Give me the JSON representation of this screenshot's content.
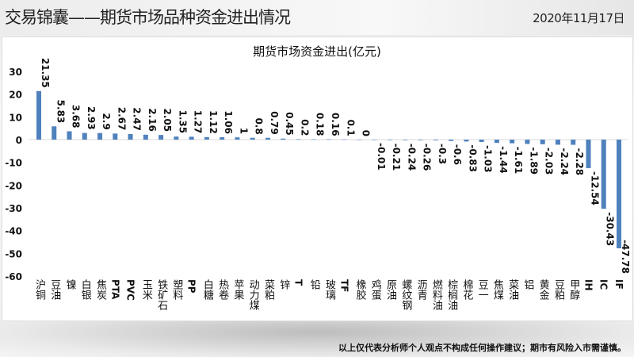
{
  "header": {
    "title": "交易锦囊——期货市场品种资金进出情况",
    "date": "2020年11月17日"
  },
  "footer": {
    "disclaimer": "以上仅代表分析师个人观点不构成任何操作建议；期市有风险入市需谨慎。"
  },
  "chart_data": {
    "type": "bar",
    "title": "期货市场资金进出(亿元)",
    "xlabel": "",
    "ylabel": "",
    "ylim": [
      -60,
      30
    ],
    "yticks": [
      30,
      20,
      10,
      0,
      -10,
      -20,
      -30,
      -40,
      -50,
      -60
    ],
    "grid": false,
    "bar_color": "#4f81bd",
    "data_labels": true,
    "categories": [
      "沪铜",
      "豆油",
      "镍",
      "白银",
      "焦炭",
      "PTA",
      "PVC",
      "玉米",
      "铁矿石",
      "塑料",
      "PP",
      "白糖",
      "热卷",
      "苹果",
      "动力煤",
      "菜粕",
      "锌",
      "T",
      "铅",
      "玻璃",
      "TF",
      "橡胶",
      "鸡蛋",
      "原油",
      "螺纹钢",
      "沥青",
      "燃料油",
      "棕榈油",
      "棉花",
      "豆一",
      "焦煤",
      "菜油",
      "铝",
      "黄金",
      "豆粕",
      "甲醇",
      "IH",
      "IC",
      "IF"
    ],
    "values": [
      21.35,
      5.83,
      3.68,
      2.93,
      2.9,
      2.67,
      2.47,
      2.16,
      2.05,
      1.35,
      1.27,
      1.12,
      1.06,
      1,
      0.8,
      0.79,
      0.45,
      0.2,
      0.18,
      0.16,
      0.1,
      0,
      -0.01,
      -0.21,
      -0.24,
      -0.26,
      -0.3,
      -0.6,
      -0.83,
      -1.03,
      -1.44,
      -1.61,
      -1.89,
      -2.03,
      -2.24,
      -2.28,
      -12.54,
      -30.43,
      -47.78
    ]
  }
}
